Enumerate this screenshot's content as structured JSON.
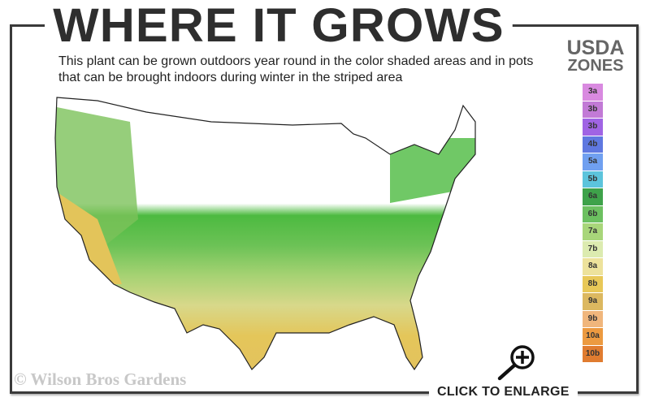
{
  "header": {
    "title": "WHERE IT GROWS",
    "subtitle": "This plant can be grown outdoors year round in the color shaded areas and in pots that can be brought indoors during winter in the striped area"
  },
  "legend": {
    "title_line1": "USDA",
    "title_line2": "ZONES",
    "zones": [
      {
        "label": "3a",
        "color": "#d98ae0"
      },
      {
        "label": "3b",
        "color": "#c27ad6"
      },
      {
        "label": "3b",
        "color": "#a064e4"
      },
      {
        "label": "4b",
        "color": "#5f78e0"
      },
      {
        "label": "5a",
        "color": "#70a0f0"
      },
      {
        "label": "5b",
        "color": "#5cc4dc"
      },
      {
        "label": "6a",
        "color": "#3ea24a"
      },
      {
        "label": "6b",
        "color": "#6cc060"
      },
      {
        "label": "7a",
        "color": "#a8d67a"
      },
      {
        "label": "7b",
        "color": "#dcebb0"
      },
      {
        "label": "8a",
        "color": "#ede29c"
      },
      {
        "label": "8b",
        "color": "#e8c858"
      },
      {
        "label": "9a",
        "color": "#dcb860"
      },
      {
        "label": "9b",
        "color": "#f0b67c"
      },
      {
        "label": "10a",
        "color": "#ec9a40"
      },
      {
        "label": "10b",
        "color": "#e07c30"
      }
    ]
  },
  "map": {
    "regions": [
      "white",
      "green",
      "yellow-green",
      "yellow"
    ],
    "colors": {
      "north": "#ffffff",
      "green": "#5cbf4a",
      "light_green": "#9ccf6a",
      "yellow": "#e3c45a"
    }
  },
  "footer": {
    "copyright": "© Wilson Bros Gardens",
    "enlarge_label": "CLICK TO ENLARGE",
    "enlarge_icon": "magnifier-plus-icon"
  }
}
